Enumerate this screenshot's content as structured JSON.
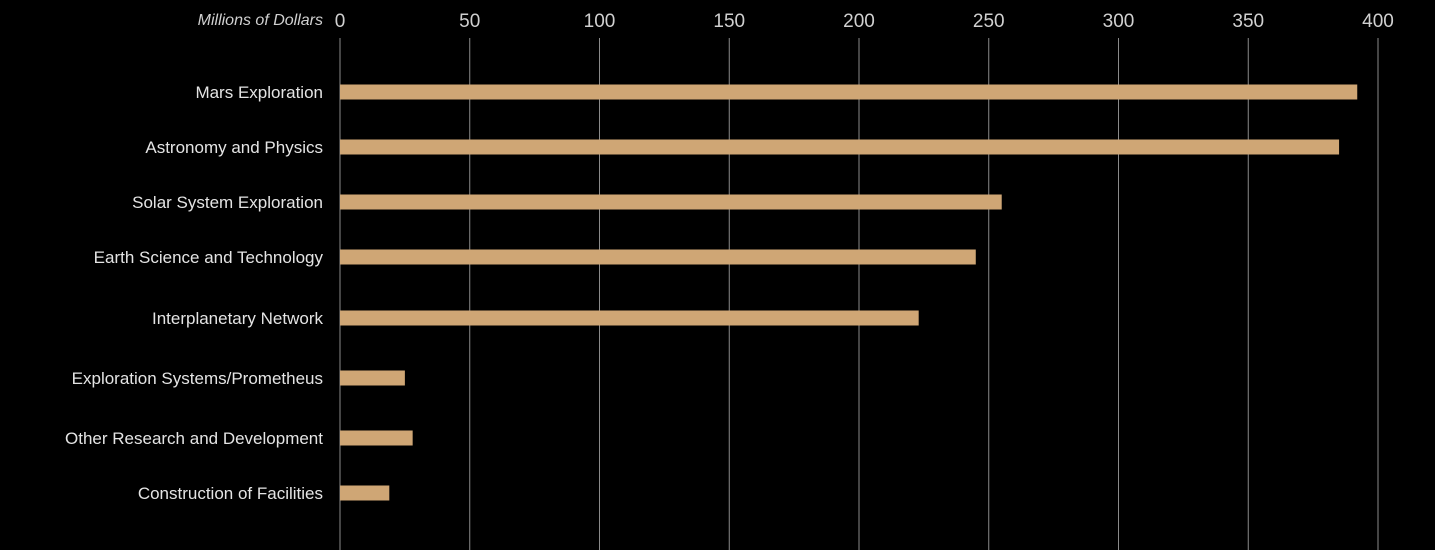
{
  "chart_data": {
    "type": "bar",
    "orientation": "horizontal",
    "axis_unit_label": "Millions of Dollars",
    "categories": [
      "Mars Exploration",
      "Astronomy and Physics",
      "Solar System Exploration",
      "Earth Science and Technology",
      "Interplanetary Network",
      "Exploration Systems/Prometheus",
      "Other Research and Development",
      "Construction of Facilities"
    ],
    "values": [
      392,
      385,
      255,
      245,
      223,
      25,
      28,
      19
    ],
    "xticks": [
      "0",
      "50",
      "100",
      "150",
      "200",
      "250",
      "300",
      "350",
      "400"
    ],
    "xlim": [
      0,
      400
    ],
    "grid": true,
    "legend": "none",
    "colors": {
      "background": "#000000",
      "bar": "#CFA675",
      "gridline": "#8A8A8A",
      "tick_text": "#D0D0D0",
      "category_text": "#E4E4E4",
      "unit_text": "#D0D0D0"
    }
  }
}
